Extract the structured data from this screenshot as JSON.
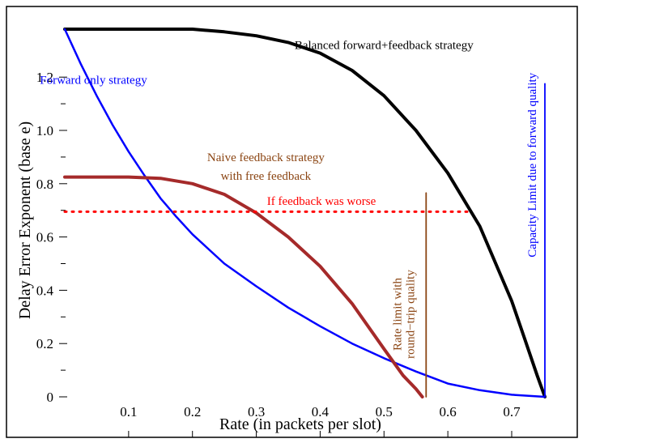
{
  "chart_data": {
    "type": "line",
    "title": "",
    "xlabel": "Rate (in  packets per slot)",
    "ylabel": "Delay Error Exponent (base e)",
    "xlim": [
      0,
      0.752
    ],
    "ylim": [
      0,
      1.38
    ],
    "xticks": [
      0.1,
      0.2,
      0.3,
      0.4,
      0.5,
      0.6,
      0.7
    ],
    "xtick_labels": [
      "0.1",
      "0.2",
      "0.3",
      "0.4",
      "0.5",
      "0.6",
      "0.7"
    ],
    "yticks": [
      0,
      0.2,
      0.4,
      0.6,
      0.8,
      1.0,
      1.2
    ],
    "ytick_labels": [
      "0",
      "0.2",
      "0.4",
      "0.6",
      "0.8",
      "1.0",
      "1.2"
    ],
    "grid": false,
    "series": [
      {
        "name": "Balanced forward+feedback strategy",
        "color": "#000000",
        "style": "solid",
        "x": [
          0,
          0.1,
          0.2,
          0.25,
          0.3,
          0.35,
          0.4,
          0.45,
          0.5,
          0.55,
          0.6,
          0.65,
          0.7,
          0.72,
          0.74,
          0.752
        ],
        "y": [
          1.38,
          1.38,
          1.38,
          1.37,
          1.355,
          1.33,
          1.29,
          1.225,
          1.13,
          1.0,
          0.84,
          0.64,
          0.36,
          0.22,
          0.08,
          0.0
        ]
      },
      {
        "name": "Forward only strategy",
        "color": "#0000ff",
        "style": "solid",
        "x": [
          0,
          0.025,
          0.05,
          0.075,
          0.1,
          0.125,
          0.15,
          0.175,
          0.2,
          0.25,
          0.3,
          0.35,
          0.4,
          0.45,
          0.5,
          0.55,
          0.6,
          0.65,
          0.7,
          0.752
        ],
        "y": [
          1.38,
          1.25,
          1.13,
          1.02,
          0.92,
          0.83,
          0.745,
          0.675,
          0.61,
          0.5,
          0.415,
          0.335,
          0.265,
          0.2,
          0.145,
          0.095,
          0.05,
          0.025,
          0.008,
          0.0
        ]
      },
      {
        "name": "Naive feedback strategy with free feedback",
        "color": "#a52a2a",
        "style": "solid",
        "x": [
          0,
          0.05,
          0.1,
          0.15,
          0.2,
          0.25,
          0.3,
          0.35,
          0.4,
          0.45,
          0.5,
          0.53,
          0.55,
          0.56
        ],
        "y": [
          0.825,
          0.825,
          0.825,
          0.82,
          0.8,
          0.76,
          0.69,
          0.6,
          0.49,
          0.35,
          0.18,
          0.08,
          0.03,
          0.0
        ]
      },
      {
        "name": "If feedback was worse",
        "color": "#ff0000",
        "style": "dotted",
        "x": [
          0,
          0.633
        ],
        "y": [
          0.695,
          0.695
        ]
      },
      {
        "name": "Rate limit with round-trip quality",
        "color": "#8b4513",
        "style": "solid",
        "x": [
          0.566,
          0.566
        ],
        "y": [
          0,
          0.765
        ]
      },
      {
        "name": "Capacity Limit due to forward quality",
        "color": "#0000ff",
        "style": "solid",
        "x": [
          0.752,
          0.752
        ],
        "y": [
          0,
          1.175
        ]
      }
    ],
    "annotations": [
      {
        "text": "Balanced forward+feedback strategy",
        "x": 0.5,
        "y": 1.305,
        "color": "#000000",
        "rotate": 0
      },
      {
        "text": "Forward only strategy",
        "x": 0.045,
        "y": 1.175,
        "color": "#0000ff",
        "rotate": 0
      },
      {
        "text": "Naive feedback strategy",
        "x": 0.315,
        "y": 0.885,
        "color": "#8b4513",
        "rotate": 0
      },
      {
        "text": "with free feedback",
        "x": 0.315,
        "y": 0.815,
        "color": "#8b4513",
        "rotate": 0
      },
      {
        "text": "If feedback was worse",
        "x": 0.402,
        "y": 0.72,
        "color": "#ff0000",
        "rotate": 0
      },
      {
        "text": "Rate limit with",
        "x": 0.527,
        "y": 0.31,
        "color": "#8b4513",
        "rotate": -90
      },
      {
        "text": "round−trip quality",
        "x": 0.547,
        "y": 0.31,
        "color": "#8b4513",
        "rotate": -90
      },
      {
        "text": "Capacity Limit due to forward quality",
        "x": 0.738,
        "y": 0.87,
        "color": "#0000ff",
        "rotate": -90
      }
    ]
  }
}
